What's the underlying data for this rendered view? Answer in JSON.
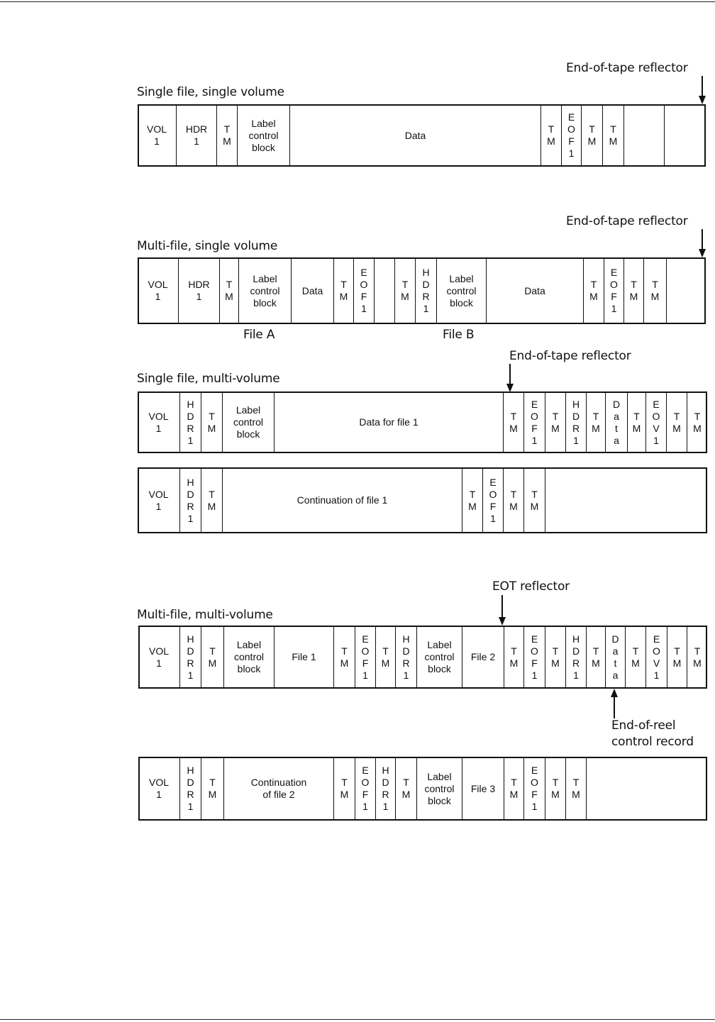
{
  "diagrams": [
    {
      "title": "Single file, single volume",
      "cells": [
        "VOL\n1",
        "HDR\n1",
        "T\nM",
        "Label\ncontrol\nblock",
        "Data",
        "T\nM",
        "E\nO\nF\n1",
        "T\nM",
        "T\nM",
        "",
        ""
      ]
    },
    {
      "title": "Multi-file, single volume",
      "cells": [
        "VOL\n1",
        "HDR\n1",
        "T\nM",
        "Label\ncontrol\nblock",
        "Data",
        "T\nM",
        "E\nO\nF\n1",
        "",
        "T\nM",
        "H\nD\nR\n1",
        "Label\ncontrol\nblock",
        "Data",
        "T\nM",
        "E\nO\nF\n1",
        "T\nM",
        "T\nM",
        ""
      ],
      "file_labels": [
        "File A",
        "File B"
      ]
    },
    {
      "title": "Single file, multi-volume",
      "cells": [
        "VOL\n1",
        "H\nD\nR\n1",
        "T\nM",
        "Label\ncontrol\nblock",
        "Data for file 1",
        "T\nM",
        "E\nO\nF\n1",
        "T\nM",
        "H\nD\nR\n1",
        "T\nM",
        "D\na\nt\na",
        "T\nM",
        "E\nO\nV\n1",
        "T\nM",
        "T\nM"
      ]
    },
    {
      "title": "",
      "cells": [
        "VOL\n1",
        "H\nD\nR\n1",
        "T\nM",
        "Continuation of file 1",
        "T\nM",
        "E\nO\nF\n1",
        "T\nM",
        "T\nM",
        ""
      ]
    },
    {
      "title": "Multi-file, multi-volume",
      "cells": [
        "VOL\n1",
        "H\nD\nR\n1",
        "T\nM",
        "Label\ncontrol\nblock",
        "File 1",
        "T\nM",
        "E\nO\nF\n1",
        "T\nM",
        "H\nD\nR\n1",
        "Label\ncontrol\nblock",
        "File 2",
        "T\nM",
        "E\nO\nF\n1",
        "T\nM",
        "H\nD\nR\n1",
        "T\nM",
        "D\na\nt\na",
        "T\nM",
        "E\nO\nV\n1",
        "T\nM",
        "T\nM"
      ]
    },
    {
      "title": "",
      "cells": [
        "VOL\n1",
        "H\nD\nR\n1",
        "T\nM",
        "Continuation\nof file 2",
        "T\nM",
        "E\nO\nF\n1",
        "H\nD\nR\n1",
        "T\nM",
        "Label\ncontrol\nblock",
        "File 3",
        "T\nM",
        "E\nO\nF\n1",
        "T\nM",
        "T\nM",
        ""
      ]
    }
  ],
  "annotations": {
    "eot_1": "End-of-tape reflector",
    "eot_2": "End-of-tape reflector",
    "eot_3": "End-of-tape reflector",
    "eot_4": "EOT reflector",
    "eor_line1": "End-of-reel",
    "eor_line2": "control record"
  }
}
